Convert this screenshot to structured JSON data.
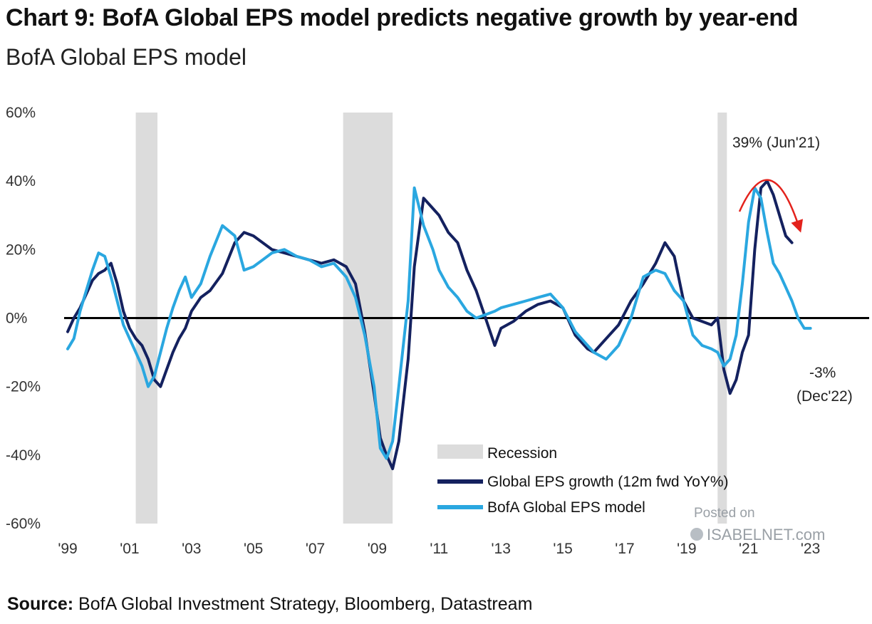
{
  "title": "Chart 9: BofA Global EPS model predicts negative growth by year-end",
  "subtitle": "BofA Global EPS model",
  "source": {
    "label": "Source:",
    "text": "BofA Global Investment Strategy, Bloomberg, Datastream"
  },
  "watermark": {
    "line1": "Posted on",
    "line2": "ISABELNET.com"
  },
  "colors": {
    "eps_growth": "#14215f",
    "model": "#2aa7e0",
    "recession": "#dcdcdc",
    "arrow": "#e3221c",
    "zero_line": "#000000"
  },
  "chart_data": {
    "type": "line",
    "title": "Chart 9: BofA Global EPS model predicts negative growth by year-end",
    "subtitle": "BofA Global EPS model",
    "xlabel": "",
    "ylabel": "",
    "xlim": [
      1999,
      2023.4
    ],
    "ylim": [
      -60,
      60
    ],
    "grid": false,
    "legend_position": "bottom-right",
    "x_ticks": [
      {
        "value": 1999,
        "label": "'99"
      },
      {
        "value": 2001,
        "label": "'01"
      },
      {
        "value": 2003,
        "label": "'03"
      },
      {
        "value": 2005,
        "label": "'05"
      },
      {
        "value": 2007,
        "label": "'07"
      },
      {
        "value": 2009,
        "label": "'09"
      },
      {
        "value": 2011,
        "label": "'11"
      },
      {
        "value": 2013,
        "label": "'13"
      },
      {
        "value": 2015,
        "label": "'15"
      },
      {
        "value": 2017,
        "label": "'17"
      },
      {
        "value": 2019,
        "label": "'19"
      },
      {
        "value": 2021,
        "label": "'21"
      },
      {
        "value": 2023,
        "label": "'23"
      }
    ],
    "y_ticks": [
      {
        "value": 60,
        "label": "60%"
      },
      {
        "value": 40,
        "label": "40%"
      },
      {
        "value": 20,
        "label": "20%"
      },
      {
        "value": 0,
        "label": "0%"
      },
      {
        "value": -20,
        "label": "-20%"
      },
      {
        "value": -40,
        "label": "-40%"
      },
      {
        "value": -60,
        "label": "-60%"
      }
    ],
    "recessions": [
      {
        "name": "Recession",
        "start": 2001.2,
        "end": 2001.9
      },
      {
        "name": "Recession",
        "start": 2007.9,
        "end": 2009.5
      },
      {
        "name": "Recession",
        "start": 2020.0,
        "end": 2020.3
      }
    ],
    "series": [
      {
        "name": "Global EPS growth (12m fwd YoY%)",
        "color": "#14215f",
        "x": [
          1999.0,
          1999.2,
          1999.4,
          1999.6,
          1999.8,
          2000.0,
          2000.2,
          2000.4,
          2000.6,
          2000.8,
          2001.0,
          2001.2,
          2001.4,
          2001.6,
          2001.8,
          2002.0,
          2002.2,
          2002.4,
          2002.6,
          2002.8,
          2003.0,
          2003.3,
          2003.6,
          2004.0,
          2004.4,
          2004.7,
          2005.0,
          2005.3,
          2005.6,
          2006.0,
          2006.4,
          2006.8,
          2007.2,
          2007.6,
          2008.0,
          2008.3,
          2008.6,
          2008.9,
          2009.1,
          2009.3,
          2009.5,
          2009.7,
          2010.0,
          2010.2,
          2010.5,
          2010.8,
          2011.0,
          2011.3,
          2011.6,
          2011.9,
          2012.2,
          2012.5,
          2012.8,
          2013.0,
          2013.4,
          2013.8,
          2014.2,
          2014.6,
          2015.0,
          2015.4,
          2015.8,
          2016.0,
          2016.4,
          2016.8,
          2017.2,
          2017.6,
          2018.0,
          2018.3,
          2018.6,
          2018.9,
          2019.2,
          2019.5,
          2019.8,
          2020.0,
          2020.2,
          2020.4,
          2020.6,
          2020.8,
          2021.0,
          2021.2,
          2021.4,
          2021.6,
          2021.8,
          2022.0,
          2022.2,
          2022.4
        ],
        "values": [
          -4,
          0,
          3,
          7,
          11,
          13,
          14,
          16,
          10,
          2,
          -3,
          -6,
          -8,
          -12,
          -18,
          -20,
          -15,
          -10,
          -6,
          -3,
          2,
          6,
          8,
          13,
          22,
          25,
          24,
          22,
          20,
          19,
          18,
          17,
          16,
          17,
          15,
          10,
          -4,
          -22,
          -35,
          -40,
          -44,
          -36,
          -12,
          15,
          35,
          32,
          30,
          25,
          22,
          14,
          8,
          0,
          -8,
          -3,
          -1,
          2,
          4,
          5,
          3,
          -5,
          -9,
          -10,
          -6,
          -2,
          5,
          10,
          16,
          22,
          18,
          5,
          0,
          -1,
          -2,
          0,
          -15,
          -22,
          -18,
          -10,
          -5,
          20,
          38,
          40,
          36,
          30,
          24,
          22
        ]
      },
      {
        "name": "BofA Global EPS model",
        "color": "#2aa7e0",
        "x": [
          1999.0,
          1999.2,
          1999.4,
          1999.6,
          1999.8,
          2000.0,
          2000.2,
          2000.4,
          2000.6,
          2000.8,
          2001.0,
          2001.2,
          2001.4,
          2001.6,
          2001.8,
          2002.0,
          2002.2,
          2002.4,
          2002.6,
          2002.8,
          2003.0,
          2003.3,
          2003.6,
          2004.0,
          2004.4,
          2004.7,
          2005.0,
          2005.3,
          2005.6,
          2006.0,
          2006.4,
          2006.8,
          2007.2,
          2007.6,
          2008.0,
          2008.3,
          2008.6,
          2008.9,
          2009.1,
          2009.3,
          2009.5,
          2009.7,
          2010.0,
          2010.2,
          2010.5,
          2010.8,
          2011.0,
          2011.3,
          2011.6,
          2011.9,
          2012.2,
          2012.5,
          2012.8,
          2013.0,
          2013.4,
          2013.8,
          2014.2,
          2014.6,
          2015.0,
          2015.4,
          2015.8,
          2016.0,
          2016.4,
          2016.8,
          2017.2,
          2017.6,
          2018.0,
          2018.3,
          2018.6,
          2018.9,
          2019.2,
          2019.5,
          2019.8,
          2020.0,
          2020.2,
          2020.4,
          2020.6,
          2020.8,
          2021.0,
          2021.2,
          2021.4,
          2021.6,
          2021.8,
          2022.0,
          2022.2,
          2022.4,
          2022.6,
          2022.8,
          2023.0
        ],
        "values": [
          -9,
          -6,
          2,
          8,
          14,
          19,
          18,
          12,
          5,
          -2,
          -6,
          -10,
          -14,
          -20,
          -17,
          -10,
          -3,
          3,
          8,
          12,
          6,
          10,
          18,
          27,
          24,
          14,
          15,
          17,
          19,
          20,
          18,
          17,
          15,
          16,
          12,
          6,
          -5,
          -20,
          -38,
          -41,
          -36,
          -20,
          5,
          38,
          27,
          20,
          14,
          9,
          6,
          2,
          0,
          1,
          2,
          3,
          4,
          5,
          6,
          7,
          3,
          -4,
          -8,
          -10,
          -12,
          -8,
          0,
          12,
          14,
          13,
          8,
          5,
          -5,
          -8,
          -9,
          -10,
          -14,
          -12,
          -5,
          10,
          28,
          38,
          35,
          25,
          16,
          13,
          9,
          5,
          0,
          -3,
          -3
        ]
      }
    ],
    "annotations": [
      {
        "text": "39% (Jun'21)",
        "x": 2021.5,
        "y": 39
      },
      {
        "text": "-3%",
        "x": 2023.0,
        "y": -3
      },
      {
        "text": "(Dec'22)",
        "x": 2023.0,
        "y": -3
      }
    ],
    "legend": [
      "Recession",
      "Global EPS growth (12m fwd YoY%)",
      "BofA Global EPS model"
    ]
  }
}
